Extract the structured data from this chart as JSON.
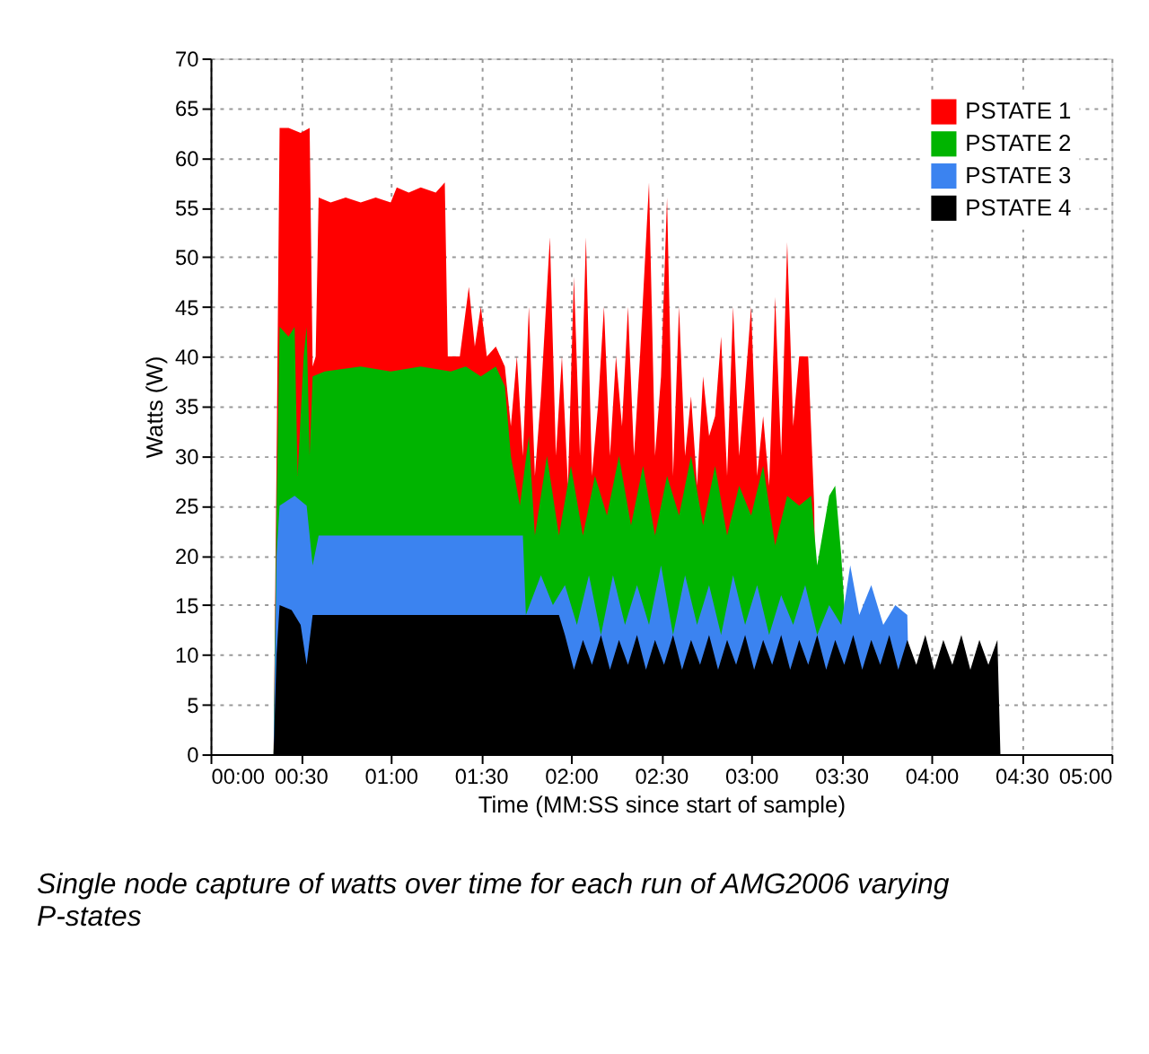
{
  "chart_data": {
    "type": "area",
    "xlabel": "Time (MM:SS since start of sample)",
    "ylabel": "Watts (W)",
    "annotations": [
      "Single node capture of watts over time for each run of AMG2006 varying P-states"
    ],
    "xlim": [
      0,
      300
    ],
    "xticks": [
      {
        "value": 0,
        "label": "00:00"
      },
      {
        "value": 30,
        "label": "00:30"
      },
      {
        "value": 60,
        "label": "01:00"
      },
      {
        "value": 90,
        "label": "01:30"
      },
      {
        "value": 120,
        "label": "02:00"
      },
      {
        "value": 150,
        "label": "02:30"
      },
      {
        "value": 180,
        "label": "03:00"
      },
      {
        "value": 210,
        "label": "03:30"
      },
      {
        "value": 240,
        "label": "04:00"
      },
      {
        "value": 270,
        "label": "04:30"
      },
      {
        "value": 300,
        "label": "05:00"
      }
    ],
    "ylim": [
      0,
      70
    ],
    "yticks": [
      0,
      5,
      10,
      15,
      20,
      25,
      30,
      35,
      40,
      45,
      50,
      55,
      60,
      65,
      70
    ],
    "grid": true,
    "legend": "top right",
    "series": [
      {
        "name": "PSTATE 1",
        "color": "#ff0000",
        "x": [
          21,
          22,
          23,
          26,
          30,
          33,
          34,
          35,
          36,
          40,
          45,
          50,
          55,
          60,
          62,
          66,
          70,
          75,
          78,
          79,
          83,
          86,
          88,
          90,
          92,
          95,
          98,
          100,
          102,
          104,
          106,
          108,
          110,
          113,
          115,
          117,
          119,
          121,
          123,
          125,
          127,
          129,
          131,
          133,
          135,
          137,
          139,
          141,
          143,
          146,
          148,
          150,
          152,
          154,
          156,
          158,
          160,
          162,
          164,
          166,
          168,
          170,
          172,
          174,
          176,
          178,
          180,
          182,
          184,
          186,
          188,
          190,
          192,
          194,
          196,
          199,
          201,
          202
        ],
        "values": [
          0,
          30,
          63,
          63,
          62.5,
          63,
          39,
          40,
          56,
          55.5,
          56,
          55.5,
          56,
          55.5,
          57,
          56.5,
          57,
          56.5,
          57.5,
          40,
          40,
          47,
          41,
          45,
          40,
          41,
          39,
          33,
          40,
          30,
          45,
          28,
          36,
          52,
          30,
          40,
          27,
          48,
          30,
          52,
          28,
          35,
          45,
          30,
          40,
          33,
          45,
          30,
          40,
          57.5,
          30,
          38,
          56,
          28,
          45,
          30,
          36,
          27,
          38,
          32,
          34,
          42,
          28,
          45,
          30,
          37,
          45,
          28,
          34,
          27,
          46,
          30,
          51.5,
          33,
          40,
          40,
          25,
          0
        ]
      },
      {
        "name": "PSTATE 2",
        "color": "#00b400",
        "x": [
          21,
          22,
          23,
          26,
          28,
          29,
          31,
          32,
          33,
          34,
          38,
          50,
          60,
          70,
          80,
          85,
          90,
          95,
          98,
          100,
          103,
          106,
          108,
          112,
          116,
          120,
          124,
          128,
          132,
          136,
          140,
          144,
          148,
          152,
          156,
          160,
          164,
          168,
          172,
          176,
          180,
          184,
          188,
          192,
          196,
          200,
          202,
          206,
          208,
          210,
          211,
          212
        ],
        "values": [
          0,
          25,
          43,
          42,
          43,
          28,
          40,
          43,
          30,
          38,
          38.5,
          39,
          38.5,
          39,
          38.5,
          39,
          38,
          39,
          37,
          30,
          25,
          32,
          22,
          30,
          22,
          29,
          22,
          28,
          24,
          30,
          23,
          29,
          22,
          28,
          24,
          30,
          23,
          29,
          22,
          27,
          24,
          29,
          21,
          26,
          25,
          26,
          19,
          26,
          27,
          20,
          15,
          0
        ]
      },
      {
        "name": "PSTATE 3",
        "color": "#3b83f0",
        "x": [
          21,
          22,
          23,
          28,
          32,
          34,
          36,
          45,
          60,
          75,
          90,
          104,
          105,
          110,
          114,
          118,
          122,
          126,
          130,
          134,
          138,
          142,
          146,
          150,
          154,
          158,
          162,
          166,
          170,
          174,
          178,
          182,
          186,
          190,
          194,
          198,
          202,
          206,
          210,
          213,
          216,
          220,
          224,
          228,
          232,
          233
        ],
        "values": [
          0,
          20,
          25,
          26,
          25,
          19,
          22,
          22,
          22,
          22,
          22,
          22,
          14,
          18,
          15,
          17,
          13,
          18,
          12,
          18,
          13,
          17,
          13,
          19,
          12,
          18,
          13,
          17,
          12,
          18,
          13,
          17,
          12,
          16,
          13,
          17,
          12,
          15,
          13,
          19,
          14,
          17,
          13,
          15,
          14,
          0
        ]
      },
      {
        "name": "PSTATE 4",
        "color": "#000000",
        "x": [
          21,
          22,
          23,
          27,
          30,
          32,
          34,
          50,
          70,
          90,
          110,
          116,
          118,
          121,
          124,
          127,
          130,
          133,
          136,
          139,
          142,
          145,
          148,
          151,
          154,
          157,
          160,
          163,
          166,
          169,
          172,
          175,
          178,
          181,
          184,
          187,
          190,
          193,
          196,
          199,
          202,
          205,
          208,
          211,
          214,
          217,
          220,
          223,
          226,
          229,
          232,
          235,
          238,
          241,
          244,
          247,
          250,
          253,
          256,
          259,
          262,
          263
        ],
        "values": [
          0,
          10,
          15,
          14.5,
          13,
          9,
          14,
          14,
          14,
          14,
          14,
          14,
          12,
          8.5,
          11.5,
          9,
          12,
          8.5,
          11.5,
          9,
          12,
          8.5,
          11.5,
          9,
          12,
          8.5,
          11.5,
          9,
          12,
          8.5,
          11.5,
          9,
          12,
          8.5,
          11.5,
          9,
          12,
          8.5,
          11.5,
          9,
          12,
          8.5,
          11.5,
          9,
          12,
          8.5,
          11.5,
          9,
          12,
          8.5,
          11.5,
          9,
          12,
          8.5,
          11.5,
          9,
          12,
          8.5,
          11.5,
          9,
          11.5,
          0
        ]
      }
    ]
  }
}
